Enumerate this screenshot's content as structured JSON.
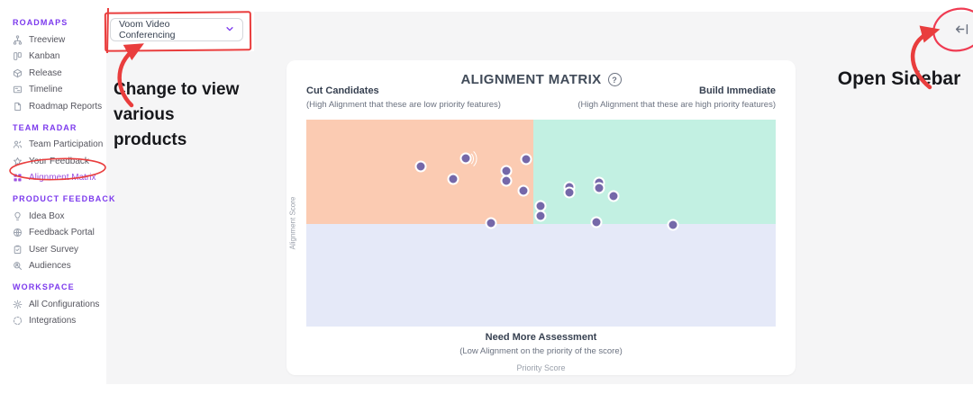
{
  "app": {
    "product_selector": {
      "value": "Voom Video Conferencing"
    },
    "open_sidebar_icon": "arrow-left-to-bar"
  },
  "icons": {
    "help_glyph": "?"
  },
  "sidebar": {
    "sections": [
      {
        "header": "ROADMAPS",
        "items": [
          {
            "label": "Treeview",
            "icon": "treeview-icon"
          },
          {
            "label": "Kanban",
            "icon": "kanban-icon"
          },
          {
            "label": "Release",
            "icon": "release-icon"
          },
          {
            "label": "Timeline",
            "icon": "timeline-icon"
          },
          {
            "label": "Roadmap Reports",
            "icon": "document-icon"
          }
        ]
      },
      {
        "header": "TEAM RADAR",
        "items": [
          {
            "label": "Team Participation",
            "icon": "people-icon"
          },
          {
            "label": "Your Feedback",
            "icon": "star-icon"
          },
          {
            "label": "Alignment Matrix",
            "icon": "grid-icon",
            "active": true
          }
        ]
      },
      {
        "header": "PRODUCT FEEDBACK",
        "items": [
          {
            "label": "Idea Box",
            "icon": "lightbulb-icon"
          },
          {
            "label": "Feedback Portal",
            "icon": "globe-icon"
          },
          {
            "label": "User Survey",
            "icon": "clipboard-icon"
          },
          {
            "label": "Audiences",
            "icon": "search-person-icon"
          }
        ]
      },
      {
        "header": "WORKSPACE",
        "items": [
          {
            "label": "All Configurations",
            "icon": "gear-icon"
          },
          {
            "label": "Integrations",
            "icon": "circle-icon"
          }
        ]
      }
    ]
  },
  "annotations": {
    "change_product_note": "Change to view various products",
    "open_sidebar_note": "Open Sidebar",
    "annotation_color": "#e93d3d"
  },
  "ui_colors": {
    "sidebar_header_purple": "#7c3aed",
    "active_item_purple": "#9b51e0",
    "canvas_gray": "#f5f5f6",
    "annotation_red": "#e93d3d"
  },
  "chart_data": {
    "type": "scatter",
    "title": "ALIGNMENT MATRIX",
    "xlabel": "Priority Score",
    "ylabel": "Alignment Score",
    "x_range": [
      0,
      100
    ],
    "y_range": [
      0,
      100
    ],
    "grid": false,
    "legend": false,
    "quadrant_split": {
      "x_pct": 48.4,
      "y_pct": 49.6
    },
    "quadrants": {
      "top_left": {
        "label": "Cut Candidates",
        "sub": "(High Alignment that these are low priority features)",
        "color": "#fbcbb2"
      },
      "top_right": {
        "label": "Build Immediate",
        "sub": "(High Alignment that these are high priority features)",
        "color": "#c2f0e2"
      },
      "bottom": {
        "label": "Need More Assessment",
        "sub": "(Low Alignment on the priority of the score)",
        "color": "#e5e9f8"
      }
    },
    "point_color": "#7568a9",
    "points": [
      {
        "x": 24.4,
        "y": 77.4
      },
      {
        "x": 34.0,
        "y": 81.3,
        "ripple": true
      },
      {
        "x": 31.3,
        "y": 71.3
      },
      {
        "x": 42.6,
        "y": 75.2
      },
      {
        "x": 42.6,
        "y": 70.4
      },
      {
        "x": 46.8,
        "y": 80.9
      },
      {
        "x": 46.3,
        "y": 65.7
      },
      {
        "x": 39.3,
        "y": 50.0
      },
      {
        "x": 49.9,
        "y": 58.3
      },
      {
        "x": 49.9,
        "y": 53.5
      },
      {
        "x": 56.0,
        "y": 67.4
      },
      {
        "x": 56.0,
        "y": 64.8
      },
      {
        "x": 62.4,
        "y": 69.6
      },
      {
        "x": 62.4,
        "y": 67.0
      },
      {
        "x": 65.5,
        "y": 63.0
      },
      {
        "x": 61.8,
        "y": 50.4
      },
      {
        "x": 78.1,
        "y": 49.1
      }
    ]
  }
}
